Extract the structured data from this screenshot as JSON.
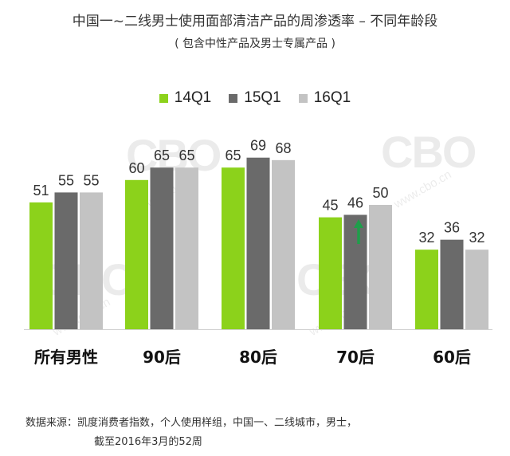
{
  "title": "中国一~二线男士使用面部清洁产品的周渗透率 – 不同年龄段",
  "subtitle": "( 包含中性产品及男士专属产品 )",
  "watermark": {
    "logo": "CBO",
    "url": "www.cbo.cn"
  },
  "annotation": {
    "icon": "up-arrow-icon",
    "color": "#1e9e4a"
  },
  "chart_data": {
    "type": "bar",
    "categories": [
      "所有男性",
      "90后",
      "80后",
      "70后",
      "60后"
    ],
    "series": [
      {
        "name": "14Q1",
        "color": "#8cd21b",
        "values": [
          51,
          60,
          65,
          45,
          32
        ]
      },
      {
        "name": "15Q1",
        "color": "#6a6a6a",
        "values": [
          55,
          65,
          69,
          46,
          36
        ]
      },
      {
        "name": "16Q1",
        "color": "#c3c3c3",
        "values": [
          55,
          65,
          68,
          50,
          32
        ]
      }
    ],
    "ylim": [
      0,
      100
    ],
    "grid": false,
    "legend": "top",
    "data_labels": true
  },
  "footnote": {
    "label": "数据来源：",
    "line1": "凯度消费者指数，个人使用样组，中国一、二线城市，男士，",
    "line2": "截至2016年3月的52周"
  }
}
